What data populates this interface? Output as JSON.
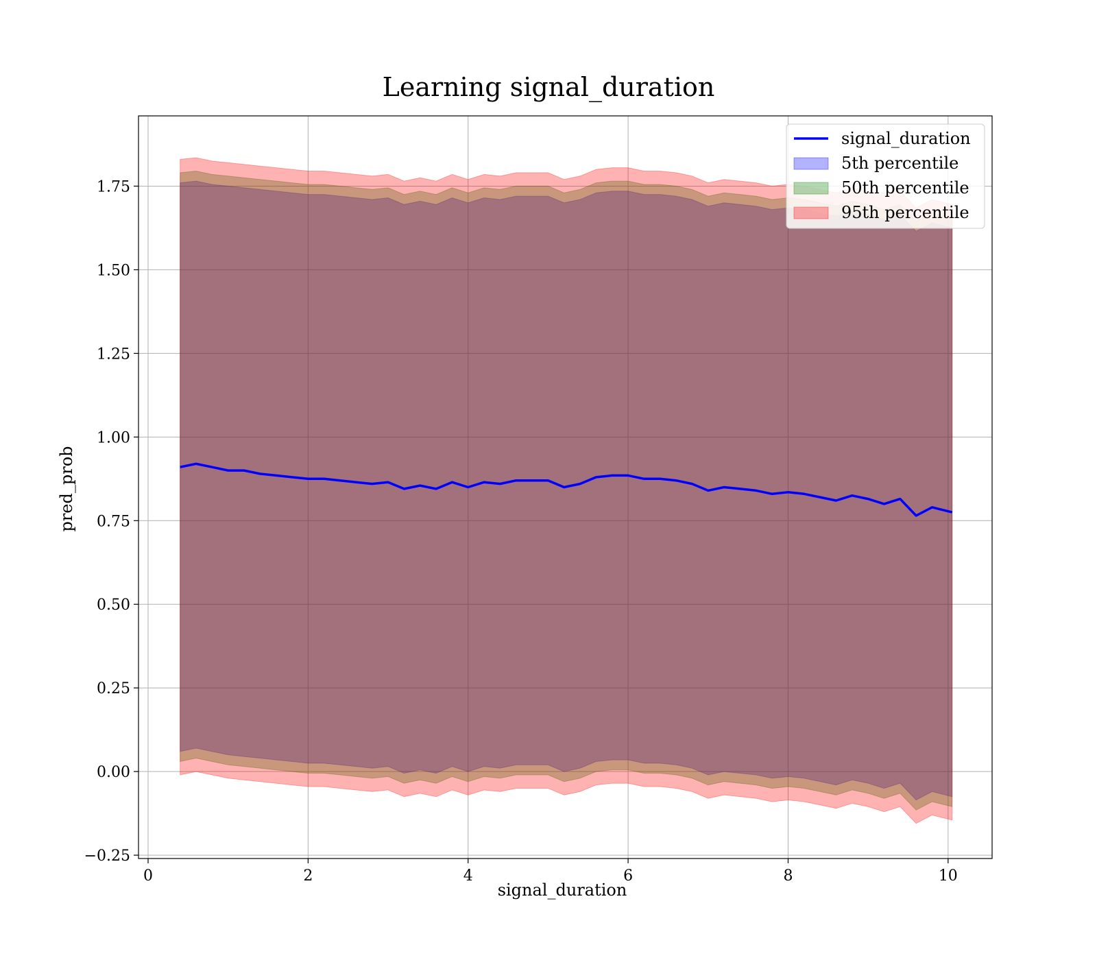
{
  "chart_data": {
    "type": "area",
    "title": "Learning signal_duration",
    "xlabel": "signal_duration",
    "ylabel": "pred_prob",
    "xlim": [
      -0.12,
      10.55
    ],
    "ylim": [
      -0.26,
      1.96
    ],
    "xticks": [
      0,
      2,
      4,
      6,
      8,
      10
    ],
    "xtick_labels": [
      "0",
      "2",
      "4",
      "6",
      "8",
      "10"
    ],
    "yticks": [
      -0.25,
      0.0,
      0.25,
      0.5,
      0.75,
      1.0,
      1.25,
      1.5,
      1.75
    ],
    "ytick_labels": [
      "−0.25",
      "0.00",
      "0.25",
      "0.50",
      "0.75",
      "1.00",
      "1.25",
      "1.50",
      "1.75"
    ],
    "grid": true,
    "legend_position": "top-right",
    "x": [
      0.4,
      0.6,
      0.8,
      1.0,
      1.2,
      1.4,
      1.6,
      1.8,
      2.0,
      2.2,
      2.4,
      2.6,
      2.8,
      3.0,
      3.2,
      3.4,
      3.6,
      3.8,
      4.0,
      4.2,
      4.4,
      4.6,
      4.8,
      5.0,
      5.2,
      5.4,
      5.6,
      5.8,
      6.0,
      6.2,
      6.4,
      6.6,
      6.8,
      7.0,
      7.2,
      7.4,
      7.6,
      7.8,
      8.0,
      8.2,
      8.4,
      8.6,
      8.8,
      9.0,
      9.2,
      9.4,
      9.6,
      9.8,
      10.05
    ],
    "series": [
      {
        "name": "signal_duration",
        "kind": "line",
        "color": "#0000ff",
        "values": [
          0.91,
          0.92,
          0.91,
          0.9,
          0.9,
          0.89,
          0.885,
          0.88,
          0.875,
          0.875,
          0.87,
          0.865,
          0.86,
          0.865,
          0.845,
          0.855,
          0.845,
          0.865,
          0.85,
          0.865,
          0.86,
          0.87,
          0.87,
          0.87,
          0.85,
          0.86,
          0.88,
          0.885,
          0.885,
          0.875,
          0.875,
          0.87,
          0.86,
          0.84,
          0.85,
          0.845,
          0.84,
          0.83,
          0.835,
          0.83,
          0.82,
          0.81,
          0.825,
          0.815,
          0.8,
          0.815,
          0.765,
          0.79,
          0.775
        ]
      },
      {
        "name": "5th percentile",
        "kind": "band",
        "color": "#0000ff",
        "lower": [
          0.06,
          0.07,
          0.06,
          0.05,
          0.045,
          0.04,
          0.035,
          0.03,
          0.025,
          0.025,
          0.02,
          0.015,
          0.01,
          0.015,
          -0.005,
          0.005,
          -0.005,
          0.015,
          0.0,
          0.015,
          0.01,
          0.02,
          0.02,
          0.02,
          0.0,
          0.01,
          0.03,
          0.035,
          0.035,
          0.025,
          0.025,
          0.02,
          0.01,
          -0.01,
          0.0,
          -0.005,
          -0.01,
          -0.02,
          -0.015,
          -0.02,
          -0.03,
          -0.04,
          -0.025,
          -0.035,
          -0.05,
          -0.035,
          -0.085,
          -0.06,
          -0.075
        ],
        "upper": [
          1.76,
          1.765,
          1.755,
          1.75,
          1.745,
          1.74,
          1.735,
          1.73,
          1.725,
          1.725,
          1.72,
          1.715,
          1.71,
          1.715,
          1.695,
          1.705,
          1.695,
          1.715,
          1.7,
          1.715,
          1.71,
          1.72,
          1.72,
          1.72,
          1.7,
          1.71,
          1.73,
          1.735,
          1.735,
          1.725,
          1.725,
          1.72,
          1.71,
          1.69,
          1.7,
          1.695,
          1.69,
          1.68,
          1.685,
          1.68,
          1.67,
          1.66,
          1.675,
          1.665,
          1.65,
          1.665,
          1.615,
          1.64,
          1.625
        ]
      },
      {
        "name": "50th percentile",
        "kind": "band",
        "color": "#008000",
        "lower": [
          0.03,
          0.04,
          0.03,
          0.02,
          0.015,
          0.01,
          0.005,
          0.0,
          -0.005,
          -0.005,
          -0.01,
          -0.015,
          -0.02,
          -0.015,
          -0.035,
          -0.025,
          -0.035,
          -0.015,
          -0.03,
          -0.015,
          -0.02,
          -0.01,
          -0.01,
          -0.01,
          -0.03,
          -0.02,
          0.0,
          0.005,
          0.005,
          -0.005,
          -0.005,
          -0.01,
          -0.02,
          -0.04,
          -0.03,
          -0.035,
          -0.04,
          -0.05,
          -0.045,
          -0.05,
          -0.06,
          -0.07,
          -0.055,
          -0.065,
          -0.08,
          -0.065,
          -0.115,
          -0.09,
          -0.105
        ],
        "upper": [
          1.79,
          1.795,
          1.785,
          1.78,
          1.775,
          1.77,
          1.765,
          1.76,
          1.755,
          1.755,
          1.75,
          1.745,
          1.74,
          1.745,
          1.725,
          1.735,
          1.725,
          1.745,
          1.73,
          1.745,
          1.74,
          1.75,
          1.75,
          1.75,
          1.73,
          1.74,
          1.76,
          1.765,
          1.765,
          1.755,
          1.755,
          1.75,
          1.74,
          1.72,
          1.73,
          1.725,
          1.72,
          1.71,
          1.715,
          1.71,
          1.7,
          1.69,
          1.705,
          1.695,
          1.68,
          1.695,
          1.645,
          1.67,
          1.655
        ]
      },
      {
        "name": "95th percentile",
        "kind": "band",
        "color": "#ff0000",
        "lower": [
          -0.01,
          0.0,
          -0.01,
          -0.02,
          -0.025,
          -0.03,
          -0.035,
          -0.04,
          -0.045,
          -0.045,
          -0.05,
          -0.055,
          -0.06,
          -0.055,
          -0.075,
          -0.065,
          -0.075,
          -0.055,
          -0.07,
          -0.055,
          -0.06,
          -0.05,
          -0.05,
          -0.05,
          -0.07,
          -0.06,
          -0.04,
          -0.035,
          -0.035,
          -0.045,
          -0.045,
          -0.05,
          -0.06,
          -0.08,
          -0.07,
          -0.075,
          -0.08,
          -0.09,
          -0.085,
          -0.09,
          -0.1,
          -0.11,
          -0.095,
          -0.105,
          -0.12,
          -0.105,
          -0.155,
          -0.13,
          -0.145
        ],
        "upper": [
          1.83,
          1.835,
          1.825,
          1.82,
          1.815,
          1.81,
          1.805,
          1.8,
          1.795,
          1.795,
          1.79,
          1.785,
          1.78,
          1.785,
          1.765,
          1.775,
          1.765,
          1.785,
          1.77,
          1.785,
          1.78,
          1.79,
          1.79,
          1.79,
          1.77,
          1.78,
          1.8,
          1.805,
          1.805,
          1.795,
          1.795,
          1.79,
          1.78,
          1.76,
          1.77,
          1.765,
          1.76,
          1.75,
          1.755,
          1.75,
          1.74,
          1.73,
          1.745,
          1.735,
          1.72,
          1.735,
          1.685,
          1.71,
          1.695
        ]
      }
    ]
  }
}
